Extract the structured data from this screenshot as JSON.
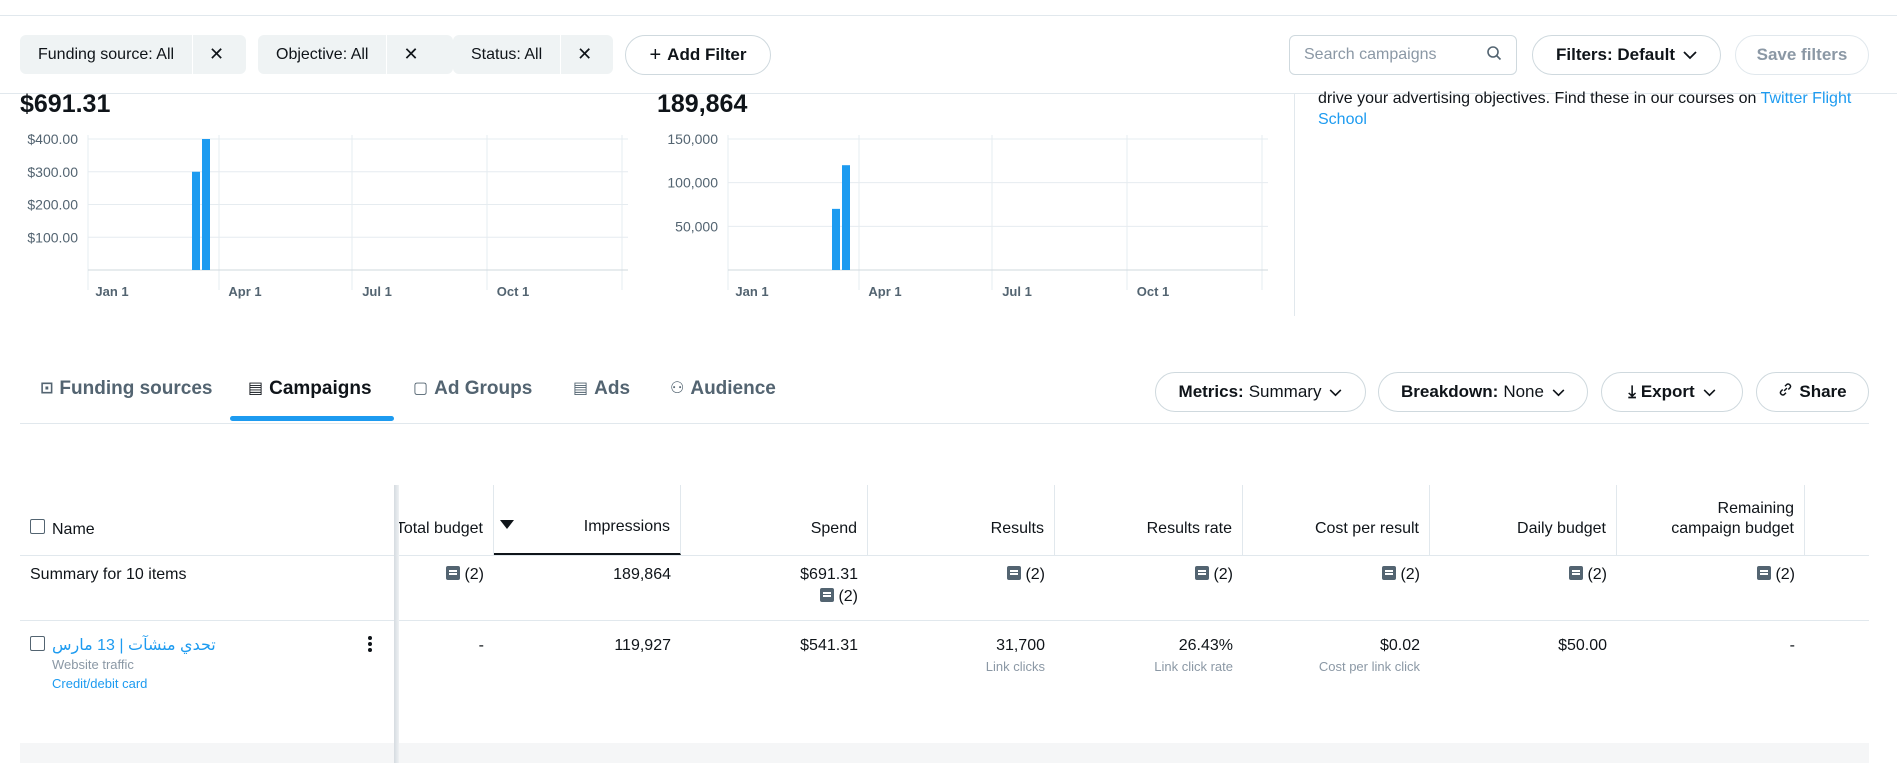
{
  "filters": {
    "chips": [
      {
        "label": "Funding source: All"
      },
      {
        "label": "Objective: All"
      },
      {
        "label": "Status: All"
      }
    ],
    "add_filter": "Add Filter",
    "search_placeholder": "Search campaigns",
    "filters_default": "Filters: Default",
    "save_filters": "Save filters",
    "close_glyph": "✕",
    "chevron_glyph": "⌄"
  },
  "kpis": {
    "spend": "$691.31",
    "impressions": "189,864"
  },
  "chart_data": [
    {
      "type": "bar",
      "title": "$691.31",
      "x_ticks": [
        "Jan 1",
        "Apr 1",
        "Jul 1",
        "Oct 1"
      ],
      "y_ticks": [
        "$100.00",
        "$200.00",
        "$300.00",
        "$400.00"
      ],
      "ylim": [
        0,
        400
      ],
      "series": [
        {
          "values": [
            300,
            400
          ]
        }
      ],
      "bar_dates": [
        "Mar 12",
        "Mar 13"
      ],
      "color": "#1d9bf0",
      "grid": true
    },
    {
      "type": "bar",
      "title": "189,864",
      "x_ticks": [
        "Jan 1",
        "Apr 1",
        "Jul 1",
        "Oct 1"
      ],
      "y_ticks": [
        "50,000",
        "100,000",
        "150,000"
      ],
      "ylim": [
        0,
        150000
      ],
      "series": [
        {
          "values": [
            70000,
            120000
          ]
        }
      ],
      "bar_dates": [
        "Mar 12",
        "Mar 13"
      ],
      "color": "#1d9bf0",
      "grid": true
    }
  ],
  "info": {
    "text": "drive your advertising objectives. Find these in our courses on ",
    "link_line1": "Twitter Flight",
    "link_line2": "School"
  },
  "tabs": [
    {
      "label": "Funding sources",
      "icon": "funding-icon",
      "glyph": "⊡"
    },
    {
      "label": "Campaigns",
      "icon": "campaigns-icon",
      "glyph": "▤",
      "active": true
    },
    {
      "label": "Ad Groups",
      "icon": "ad-groups-icon",
      "glyph": "▢"
    },
    {
      "label": "Ads",
      "icon": "ads-icon",
      "glyph": "▤"
    },
    {
      "label": "Audience",
      "icon": "audience-icon",
      "glyph": "⚇"
    }
  ],
  "toolbar": {
    "metrics_label": "Metrics:",
    "metrics_value": "Summary",
    "breakdown_label": "Breakdown:",
    "breakdown_value": "None",
    "export": "Export",
    "share": "Share",
    "export_glyph": "⤓",
    "share_glyph": "🔗"
  },
  "table": {
    "name_header": "Name",
    "columns": [
      {
        "label": "Total budget"
      },
      {
        "label": "Impressions"
      },
      {
        "label": "Spend"
      },
      {
        "label": "Results"
      },
      {
        "label": "Results rate"
      },
      {
        "label": "Cost per result"
      },
      {
        "label": "Daily budget"
      },
      {
        "label": "Remaining campaign budget",
        "line1": "Remaining",
        "line2": "campaign budget"
      }
    ],
    "summary": {
      "label": "Summary for 10 items",
      "note": "(2)",
      "impressions": "189,864",
      "spend": "$691.31"
    },
    "rows": [
      {
        "name": "تحدي منشآت | 13 مارس",
        "objective": "Website traffic",
        "funding": "Credit/debit card",
        "total_budget": "-",
        "impressions": "119,927",
        "spend": "$541.31",
        "results": "31,700",
        "results_sub": "Link clicks",
        "results_rate": "26.43%",
        "results_rate_sub": "Link click rate",
        "cost_per_result": "$0.02",
        "cost_per_result_sub": "Cost per link click",
        "daily_budget": "$50.00",
        "remaining": "-"
      }
    ]
  }
}
